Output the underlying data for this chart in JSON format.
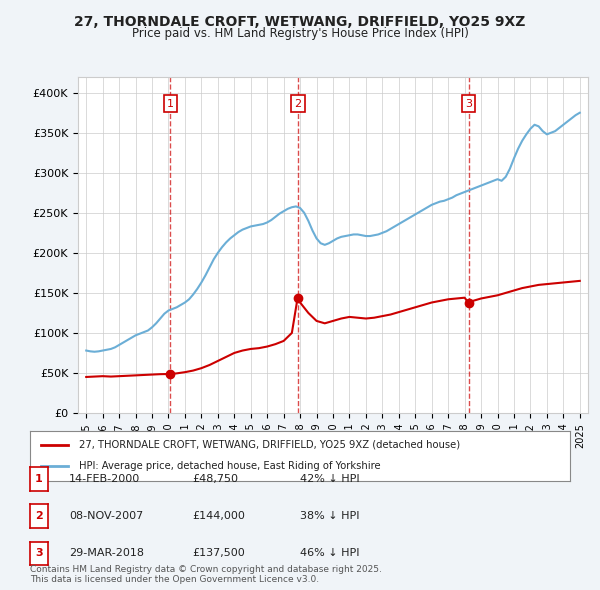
{
  "title": "27, THORNDALE CROFT, WETWANG, DRIFFIELD, YO25 9XZ",
  "subtitle": "Price paid vs. HM Land Registry's House Price Index (HPI)",
  "background_color": "#f0f4f8",
  "plot_bg_color": "#ffffff",
  "ylabel_ticks": [
    "£0",
    "£50K",
    "£100K",
    "£150K",
    "£200K",
    "£250K",
    "£300K",
    "£350K",
    "£400K"
  ],
  "ytick_values": [
    0,
    50000,
    100000,
    150000,
    200000,
    250000,
    300000,
    350000,
    400000
  ],
  "ylim": [
    0,
    420000
  ],
  "xlim_start": 1994.5,
  "xlim_end": 2025.5,
  "transactions": [
    {
      "num": 1,
      "date": "14-FEB-2000",
      "price": 48750,
      "year": 2000.12,
      "pct": "42%",
      "dir": "↓"
    },
    {
      "num": 2,
      "date": "08-NOV-2007",
      "price": 144000,
      "year": 2007.85,
      "pct": "38%",
      "dir": "↓"
    },
    {
      "num": 3,
      "date": "29-MAR-2018",
      "price": 137500,
      "year": 2018.24,
      "pct": "46%",
      "dir": "↓"
    }
  ],
  "legend_line1": "27, THORNDALE CROFT, WETWANG, DRIFFIELD, YO25 9XZ (detached house)",
  "legend_line2": "HPI: Average price, detached house, East Riding of Yorkshire",
  "footer": "Contains HM Land Registry data © Crown copyright and database right 2025.\nThis data is licensed under the Open Government Licence v3.0.",
  "red_line_color": "#cc0000",
  "blue_line_color": "#6baed6",
  "vline_color": "#cc0000",
  "hpi_data": {
    "years": [
      1995.0,
      1995.25,
      1995.5,
      1995.75,
      1996.0,
      1996.25,
      1996.5,
      1996.75,
      1997.0,
      1997.25,
      1997.5,
      1997.75,
      1998.0,
      1998.25,
      1998.5,
      1998.75,
      1999.0,
      1999.25,
      1999.5,
      1999.75,
      2000.0,
      2000.25,
      2000.5,
      2000.75,
      2001.0,
      2001.25,
      2001.5,
      2001.75,
      2002.0,
      2002.25,
      2002.5,
      2002.75,
      2003.0,
      2003.25,
      2003.5,
      2003.75,
      2004.0,
      2004.25,
      2004.5,
      2004.75,
      2005.0,
      2005.25,
      2005.5,
      2005.75,
      2006.0,
      2006.25,
      2006.5,
      2006.75,
      2007.0,
      2007.25,
      2007.5,
      2007.75,
      2008.0,
      2008.25,
      2008.5,
      2008.75,
      2009.0,
      2009.25,
      2009.5,
      2009.75,
      2010.0,
      2010.25,
      2010.5,
      2010.75,
      2011.0,
      2011.25,
      2011.5,
      2011.75,
      2012.0,
      2012.25,
      2012.5,
      2012.75,
      2013.0,
      2013.25,
      2013.5,
      2013.75,
      2014.0,
      2014.25,
      2014.5,
      2014.75,
      2015.0,
      2015.25,
      2015.5,
      2015.75,
      2016.0,
      2016.25,
      2016.5,
      2016.75,
      2017.0,
      2017.25,
      2017.5,
      2017.75,
      2018.0,
      2018.25,
      2018.5,
      2018.75,
      2019.0,
      2019.25,
      2019.5,
      2019.75,
      2020.0,
      2020.25,
      2020.5,
      2020.75,
      2021.0,
      2021.25,
      2021.5,
      2021.75,
      2022.0,
      2022.25,
      2022.5,
      2022.75,
      2023.0,
      2023.25,
      2023.5,
      2023.75,
      2024.0,
      2024.25,
      2024.5,
      2024.75,
      2025.0
    ],
    "values": [
      78000,
      77000,
      76500,
      77000,
      78000,
      79000,
      80000,
      82000,
      85000,
      88000,
      91000,
      94000,
      97000,
      99000,
      101000,
      103000,
      107000,
      112000,
      118000,
      124000,
      128000,
      130000,
      132000,
      135000,
      138000,
      142000,
      148000,
      155000,
      163000,
      172000,
      182000,
      192000,
      200000,
      207000,
      213000,
      218000,
      222000,
      226000,
      229000,
      231000,
      233000,
      234000,
      235000,
      236000,
      238000,
      241000,
      245000,
      249000,
      252000,
      255000,
      257000,
      258000,
      256000,
      250000,
      240000,
      228000,
      218000,
      212000,
      210000,
      212000,
      215000,
      218000,
      220000,
      221000,
      222000,
      223000,
      223000,
      222000,
      221000,
      221000,
      222000,
      223000,
      225000,
      227000,
      230000,
      233000,
      236000,
      239000,
      242000,
      245000,
      248000,
      251000,
      254000,
      257000,
      260000,
      262000,
      264000,
      265000,
      267000,
      269000,
      272000,
      274000,
      276000,
      278000,
      280000,
      282000,
      284000,
      286000,
      288000,
      290000,
      292000,
      290000,
      295000,
      305000,
      318000,
      330000,
      340000,
      348000,
      355000,
      360000,
      358000,
      352000,
      348000,
      350000,
      352000,
      356000,
      360000,
      364000,
      368000,
      372000,
      375000
    ]
  },
  "property_data": {
    "years": [
      1995.0,
      1995.5,
      1996.0,
      1996.5,
      1997.0,
      1997.5,
      1998.0,
      1998.5,
      1999.0,
      1999.5,
      2000.12,
      2000.5,
      2001.0,
      2001.5,
      2002.0,
      2002.5,
      2003.0,
      2003.5,
      2004.0,
      2004.5,
      2005.0,
      2005.5,
      2006.0,
      2006.5,
      2007.0,
      2007.5,
      2007.85,
      2008.0,
      2008.5,
      2009.0,
      2009.5,
      2010.0,
      2010.5,
      2011.0,
      2011.5,
      2012.0,
      2012.5,
      2013.0,
      2013.5,
      2014.0,
      2014.5,
      2015.0,
      2015.5,
      2016.0,
      2016.5,
      2017.0,
      2017.5,
      2018.0,
      2018.24,
      2018.5,
      2019.0,
      2019.5,
      2020.0,
      2020.5,
      2021.0,
      2021.5,
      2022.0,
      2022.5,
      2023.0,
      2023.5,
      2024.0,
      2024.5,
      2025.0
    ],
    "values": [
      45000,
      45500,
      46000,
      45500,
      46000,
      46500,
      47000,
      47500,
      48000,
      48500,
      48750,
      49500,
      51000,
      53000,
      56000,
      60000,
      65000,
      70000,
      75000,
      78000,
      80000,
      81000,
      83000,
      86000,
      90000,
      100000,
      144000,
      138000,
      125000,
      115000,
      112000,
      115000,
      118000,
      120000,
      119000,
      118000,
      119000,
      121000,
      123000,
      126000,
      129000,
      132000,
      135000,
      138000,
      140000,
      142000,
      143000,
      144000,
      137500,
      140000,
      143000,
      145000,
      147000,
      150000,
      153000,
      156000,
      158000,
      160000,
      161000,
      162000,
      163000,
      164000,
      165000
    ]
  }
}
